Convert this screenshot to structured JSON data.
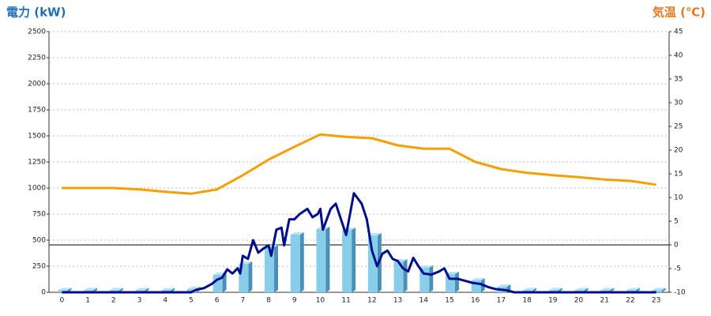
{
  "chart_data": {
    "type": "bar",
    "y_label": "電力 (kW)",
    "y2_label": "気温 (℃)",
    "categories": [
      "0",
      "1",
      "2",
      "3",
      "4",
      "5",
      "6",
      "7",
      "8",
      "9",
      "10",
      "11",
      "12",
      "13",
      "14",
      "15",
      "16",
      "17",
      "18",
      "19",
      "20",
      "21",
      "22",
      "23"
    ],
    "xlim": [
      -0.5,
      23.5
    ],
    "ylim": [
      0,
      2500
    ],
    "yticks": [
      0,
      250,
      500,
      750,
      1000,
      1250,
      1500,
      1750,
      2000,
      2250,
      2500
    ],
    "y2lim": [
      -10,
      45
    ],
    "y2ticks": [
      -10,
      -5,
      0,
      5,
      10,
      15,
      20,
      25,
      30,
      35,
      40,
      45
    ],
    "grid": true,
    "series": [
      {
        "type": "bar",
        "color": "#87ceeb",
        "values": [
          20,
          20,
          20,
          20,
          20,
          30,
          167,
          273,
          432,
          553,
          606,
          598,
          545,
          295,
          235,
          174,
          114,
          53,
          20,
          20,
          20,
          20,
          20,
          20
        ]
      },
      {
        "type": "line",
        "color": "#000e8c",
        "x": [
          0,
          5.0,
          5.2,
          5.5,
          5.8,
          6.0,
          6.2,
          6.4,
          6.6,
          6.8,
          6.9,
          7.0,
          7.2,
          7.4,
          7.6,
          7.8,
          8.0,
          8.1,
          8.3,
          8.5,
          8.6,
          8.8,
          9.0,
          9.2,
          9.5,
          9.7,
          9.9,
          10.0,
          10.1,
          10.4,
          10.6,
          10.8,
          11.0,
          11.3,
          11.6,
          11.8,
          12.0,
          12.2,
          12.4,
          12.6,
          12.8,
          13.0,
          13.2,
          13.4,
          13.6,
          13.8,
          14.0,
          14.3,
          14.6,
          14.8,
          15.0,
          15.3,
          15.6,
          15.9,
          16.2,
          16.5,
          16.8,
          17.2,
          17.5,
          23.0
        ],
        "values": [
          0,
          0,
          25,
          40,
          80,
          120,
          140,
          220,
          180,
          230,
          180,
          350,
          320,
          500,
          380,
          420,
          450,
          350,
          600,
          620,
          450,
          700,
          700,
          750,
          800,
          720,
          750,
          800,
          600,
          800,
          850,
          700,
          550,
          950,
          850,
          700,
          400,
          250,
          370,
          400,
          320,
          300,
          230,
          200,
          330,
          250,
          180,
          170,
          200,
          230,
          130,
          130,
          110,
          90,
          80,
          50,
          30,
          20,
          0,
          0
        ]
      },
      {
        "type": "line",
        "axis": "y2",
        "color": "#f5a000",
        "values": [
          12,
          12,
          12,
          11.7,
          11.2,
          10.8,
          11.7,
          14.7,
          18,
          20.7,
          23.3,
          22.8,
          22.5,
          21,
          20.3,
          20.3,
          17.5,
          16,
          15.2,
          14.7,
          14.3,
          13.8,
          13.5,
          12.7
        ]
      }
    ]
  }
}
